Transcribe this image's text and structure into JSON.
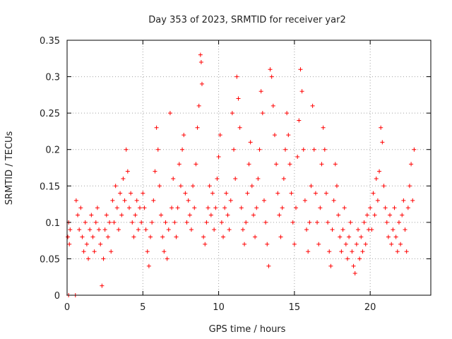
{
  "chart_data": {
    "type": "scatter",
    "title": "Day 353 of 2023, SRMTID for receiver yar2",
    "xlabel": "GPS time / hours",
    "ylabel": "SRMTID / TECUs",
    "xlim": [
      0,
      24
    ],
    "ylim": [
      0,
      0.35
    ],
    "xticks": [
      0,
      5,
      10,
      15,
      20
    ],
    "yticks": [
      0,
      0.05,
      0.1,
      0.15,
      0.2,
      0.25,
      0.3,
      0.35
    ],
    "ytick_labels": [
      "0",
      "0.05",
      "0.1",
      "0.15",
      "0.2",
      "0.25",
      "0.3",
      "0.35"
    ],
    "grid": true,
    "marker": "+",
    "color": "#ff0000",
    "series": [
      {
        "name": "yar2",
        "points": [
          [
            0.05,
            0.08
          ],
          [
            0.1,
            0.1
          ],
          [
            0.15,
            0.07
          ],
          [
            0.2,
            0.09
          ],
          [
            0.1,
            0
          ],
          [
            0.55,
            0
          ],
          [
            0.6,
            0.13
          ],
          [
            0.7,
            0.11
          ],
          [
            0.8,
            0.09
          ],
          [
            0.9,
            0.12
          ],
          [
            1.0,
            0.08
          ],
          [
            1.1,
            0.06
          ],
          [
            1.2,
            0.1
          ],
          [
            1.3,
            0.07
          ],
          [
            1.4,
            0.05
          ],
          [
            1.5,
            0.09
          ],
          [
            1.6,
            0.11
          ],
          [
            1.7,
            0.08
          ],
          [
            1.8,
            0.06
          ],
          [
            1.9,
            0.1
          ],
          [
            2.0,
            0.12
          ],
          [
            2.1,
            0.09
          ],
          [
            2.2,
            0.07
          ],
          [
            2.3,
            0.013
          ],
          [
            2.4,
            0.05
          ],
          [
            2.5,
            0.09
          ],
          [
            2.6,
            0.11
          ],
          [
            2.7,
            0.08
          ],
          [
            2.8,
            0.1
          ],
          [
            2.9,
            0.06
          ],
          [
            3.0,
            0.13
          ],
          [
            3.1,
            0.1
          ],
          [
            3.2,
            0.15
          ],
          [
            3.3,
            0.12
          ],
          [
            3.4,
            0.09
          ],
          [
            3.5,
            0.14
          ],
          [
            3.6,
            0.11
          ],
          [
            3.7,
            0.16
          ],
          [
            3.8,
            0.13
          ],
          [
            3.9,
            0.2
          ],
          [
            4.0,
            0.17
          ],
          [
            4.1,
            0.12
          ],
          [
            4.2,
            0.14
          ],
          [
            4.3,
            0.1
          ],
          [
            4.4,
            0.08
          ],
          [
            4.5,
            0.11
          ],
          [
            4.6,
            0.13
          ],
          [
            4.7,
            0.09
          ],
          [
            4.8,
            0.12
          ],
          [
            4.9,
            0.1
          ],
          [
            5.0,
            0.14
          ],
          [
            5.1,
            0.12
          ],
          [
            5.2,
            0.09
          ],
          [
            5.3,
            0.06
          ],
          [
            5.4,
            0.04
          ],
          [
            5.5,
            0.08
          ],
          [
            5.6,
            0.1
          ],
          [
            5.7,
            0.13
          ],
          [
            5.8,
            0.17
          ],
          [
            5.9,
            0.23
          ],
          [
            6.0,
            0.2
          ],
          [
            6.1,
            0.15
          ],
          [
            6.2,
            0.11
          ],
          [
            6.3,
            0.08
          ],
          [
            6.4,
            0.06
          ],
          [
            6.5,
            0.1
          ],
          [
            6.6,
            0.05
          ],
          [
            6.7,
            0.09
          ],
          [
            6.8,
            0.25
          ],
          [
            6.9,
            0.12
          ],
          [
            7.0,
            0.16
          ],
          [
            7.1,
            0.1
          ],
          [
            7.2,
            0.08
          ],
          [
            7.3,
            0.12
          ],
          [
            7.4,
            0.18
          ],
          [
            7.5,
            0.15
          ],
          [
            7.6,
            0.2
          ],
          [
            7.7,
            0.22
          ],
          [
            7.8,
            0.14
          ],
          [
            7.9,
            0.1
          ],
          [
            8.0,
            0.13
          ],
          [
            8.1,
            0.11
          ],
          [
            8.2,
            0.09
          ],
          [
            8.3,
            0.15
          ],
          [
            8.4,
            0.12
          ],
          [
            8.5,
            0.18
          ],
          [
            8.6,
            0.23
          ],
          [
            8.7,
            0.26
          ],
          [
            8.8,
            0.33
          ],
          [
            8.85,
            0.32
          ],
          [
            8.9,
            0.29
          ],
          [
            9.0,
            0.08
          ],
          [
            9.1,
            0.07
          ],
          [
            9.2,
            0.1
          ],
          [
            9.3,
            0.12
          ],
          [
            9.4,
            0.15
          ],
          [
            9.5,
            0.11
          ],
          [
            9.6,
            0.14
          ],
          [
            9.7,
            0.09
          ],
          [
            9.8,
            0.12
          ],
          [
            9.9,
            0.16
          ],
          [
            10.0,
            0.19
          ],
          [
            10.1,
            0.22
          ],
          [
            10.2,
            0.1
          ],
          [
            10.3,
            0.08
          ],
          [
            10.4,
            0.12
          ],
          [
            10.5,
            0.14
          ],
          [
            10.6,
            0.11
          ],
          [
            10.7,
            0.09
          ],
          [
            10.8,
            0.13
          ],
          [
            10.9,
            0.25
          ],
          [
            11.0,
            0.2
          ],
          [
            11.1,
            0.16
          ],
          [
            11.2,
            0.3
          ],
          [
            11.3,
            0.27
          ],
          [
            11.4,
            0.23
          ],
          [
            11.5,
            0.12
          ],
          [
            11.6,
            0.09
          ],
          [
            11.7,
            0.07
          ],
          [
            11.8,
            0.1
          ],
          [
            11.9,
            0.14
          ],
          [
            12.0,
            0.18
          ],
          [
            12.1,
            0.21
          ],
          [
            12.2,
            0.15
          ],
          [
            12.3,
            0.11
          ],
          [
            12.4,
            0.08
          ],
          [
            12.5,
            0.12
          ],
          [
            12.6,
            0.16
          ],
          [
            12.7,
            0.2
          ],
          [
            12.8,
            0.28
          ],
          [
            12.9,
            0.25
          ],
          [
            13.0,
            0.13
          ],
          [
            13.1,
            0.1
          ],
          [
            13.2,
            0.07
          ],
          [
            13.3,
            0.04
          ],
          [
            13.4,
            0.31
          ],
          [
            13.5,
            0.3
          ],
          [
            13.6,
            0.26
          ],
          [
            13.7,
            0.22
          ],
          [
            13.8,
            0.18
          ],
          [
            13.9,
            0.14
          ],
          [
            14.0,
            0.11
          ],
          [
            14.1,
            0.08
          ],
          [
            14.2,
            0.12
          ],
          [
            14.3,
            0.16
          ],
          [
            14.4,
            0.2
          ],
          [
            14.5,
            0.25
          ],
          [
            14.6,
            0.22
          ],
          [
            14.7,
            0.18
          ],
          [
            14.8,
            0.14
          ],
          [
            14.9,
            0.1
          ],
          [
            15.0,
            0.07
          ],
          [
            15.1,
            0.12
          ],
          [
            15.2,
            0.19
          ],
          [
            15.3,
            0.24
          ],
          [
            15.4,
            0.31
          ],
          [
            15.5,
            0.28
          ],
          [
            15.6,
            0.2
          ],
          [
            15.7,
            0.13
          ],
          [
            15.8,
            0.09
          ],
          [
            15.9,
            0.06
          ],
          [
            16.0,
            0.1
          ],
          [
            16.1,
            0.15
          ],
          [
            16.2,
            0.26
          ],
          [
            16.3,
            0.2
          ],
          [
            16.4,
            0.14
          ],
          [
            16.5,
            0.1
          ],
          [
            16.6,
            0.07
          ],
          [
            16.7,
            0.12
          ],
          [
            16.8,
            0.18
          ],
          [
            16.9,
            0.23
          ],
          [
            17.0,
            0.2
          ],
          [
            17.1,
            0.14
          ],
          [
            17.2,
            0.1
          ],
          [
            17.3,
            0.06
          ],
          [
            17.4,
            0.04
          ],
          [
            17.5,
            0.09
          ],
          [
            17.6,
            0.13
          ],
          [
            17.7,
            0.18
          ],
          [
            17.8,
            0.15
          ],
          [
            17.9,
            0.11
          ],
          [
            18.0,
            0.08
          ],
          [
            18.1,
            0.06
          ],
          [
            18.2,
            0.09
          ],
          [
            18.3,
            0.12
          ],
          [
            18.4,
            0.07
          ],
          [
            18.5,
            0.05
          ],
          [
            18.6,
            0.08
          ],
          [
            18.7,
            0.1
          ],
          [
            18.8,
            0.06
          ],
          [
            18.9,
            0.04
          ],
          [
            19.0,
            0.03
          ],
          [
            19.1,
            0.07
          ],
          [
            19.2,
            0.09
          ],
          [
            19.3,
            0.05
          ],
          [
            19.4,
            0.08
          ],
          [
            19.5,
            0.06
          ],
          [
            19.6,
            0.1
          ],
          [
            19.7,
            0.07
          ],
          [
            19.8,
            0.11
          ],
          [
            19.9,
            0.09
          ],
          [
            20.0,
            0.12
          ],
          [
            20.1,
            0.09
          ],
          [
            20.2,
            0.14
          ],
          [
            20.3,
            0.11
          ],
          [
            20.4,
            0.16
          ],
          [
            20.5,
            0.13
          ],
          [
            20.6,
            0.17
          ],
          [
            20.7,
            0.23
          ],
          [
            20.8,
            0.21
          ],
          [
            20.9,
            0.15
          ],
          [
            21.0,
            0.12
          ],
          [
            21.1,
            0.1
          ],
          [
            21.2,
            0.08
          ],
          [
            21.3,
            0.11
          ],
          [
            21.4,
            0.07
          ],
          [
            21.5,
            0.09
          ],
          [
            21.6,
            0.12
          ],
          [
            21.7,
            0.08
          ],
          [
            21.8,
            0.06
          ],
          [
            21.9,
            0.1
          ],
          [
            22.0,
            0.07
          ],
          [
            22.1,
            0.11
          ],
          [
            22.2,
            0.13
          ],
          [
            22.3,
            0.09
          ],
          [
            22.4,
            0.06
          ],
          [
            22.5,
            0.12
          ],
          [
            22.6,
            0.15
          ],
          [
            22.7,
            0.18
          ],
          [
            22.8,
            0.13
          ],
          [
            22.9,
            0.2
          ]
        ]
      }
    ]
  }
}
